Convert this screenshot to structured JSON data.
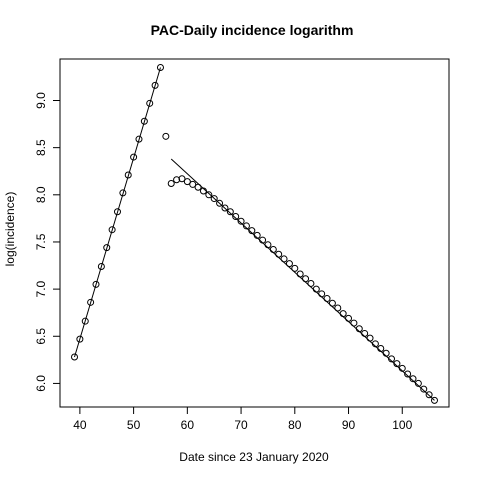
{
  "chart_data": {
    "type": "scatter",
    "title": "PAC-Daily incidence logarithm",
    "xlabel": "Date since 23 January 2020",
    "ylabel": "log(incidence)",
    "xlim": [
      36.3,
      108.7
    ],
    "ylim": [
      5.75,
      9.44
    ],
    "x_ticks": [
      40,
      50,
      60,
      70,
      80,
      90,
      100
    ],
    "y_ticks": [
      6.0,
      6.5,
      7.0,
      7.5,
      8.0,
      8.5,
      9.0
    ],
    "grid": false,
    "series": [
      {
        "marker": "open-circle",
        "points": [
          [
            39,
            6.28
          ],
          [
            40,
            6.47
          ],
          [
            41,
            6.66
          ],
          [
            42,
            6.86
          ],
          [
            43,
            7.05
          ],
          [
            44,
            7.24
          ],
          [
            45,
            7.44
          ],
          [
            46,
            7.63
          ],
          [
            47,
            7.82
          ],
          [
            48,
            8.02
          ],
          [
            49,
            8.21
          ],
          [
            50,
            8.4
          ],
          [
            51,
            8.59
          ],
          [
            52,
            8.78
          ],
          [
            53,
            8.97
          ],
          [
            54,
            9.16
          ],
          [
            55,
            9.35
          ],
          [
            56,
            8.62
          ],
          [
            57,
            8.12
          ],
          [
            58,
            8.16
          ],
          [
            59,
            8.17
          ],
          [
            60,
            8.14
          ],
          [
            61,
            8.11
          ],
          [
            62,
            8.08
          ],
          [
            63,
            8.04
          ],
          [
            64,
            8.0
          ],
          [
            65,
            7.96
          ],
          [
            66,
            7.91
          ],
          [
            67,
            7.86
          ],
          [
            68,
            7.82
          ],
          [
            69,
            7.77
          ],
          [
            70,
            7.72
          ],
          [
            71,
            7.67
          ],
          [
            72,
            7.62
          ],
          [
            73,
            7.57
          ],
          [
            74,
            7.52
          ],
          [
            75,
            7.47
          ],
          [
            76,
            7.42
          ],
          [
            77,
            7.37
          ],
          [
            78,
            7.32
          ],
          [
            79,
            7.27
          ],
          [
            80,
            7.22
          ],
          [
            81,
            7.16
          ],
          [
            82,
            7.11
          ],
          [
            83,
            7.06
          ],
          [
            84,
            7.0
          ],
          [
            85,
            6.95
          ],
          [
            86,
            6.9
          ],
          [
            87,
            6.85
          ],
          [
            88,
            6.8
          ],
          [
            89,
            6.74
          ],
          [
            90,
            6.69
          ],
          [
            91,
            6.64
          ],
          [
            92,
            6.58
          ],
          [
            93,
            6.53
          ],
          [
            94,
            6.48
          ],
          [
            95,
            6.42
          ],
          [
            96,
            6.37
          ],
          [
            97,
            6.32
          ],
          [
            98,
            6.26
          ],
          [
            99,
            6.21
          ],
          [
            100,
            6.16
          ],
          [
            101,
            6.1
          ],
          [
            102,
            6.05
          ],
          [
            103,
            6.0
          ],
          [
            104,
            5.94
          ],
          [
            105,
            5.88
          ],
          [
            106,
            5.82
          ]
        ]
      }
    ],
    "fit_lines": [
      {
        "x": [
          39,
          55
        ],
        "y": [
          6.28,
          9.35
        ]
      },
      {
        "x": [
          57,
          106
        ],
        "y": [
          8.38,
          5.82
        ]
      }
    ]
  }
}
